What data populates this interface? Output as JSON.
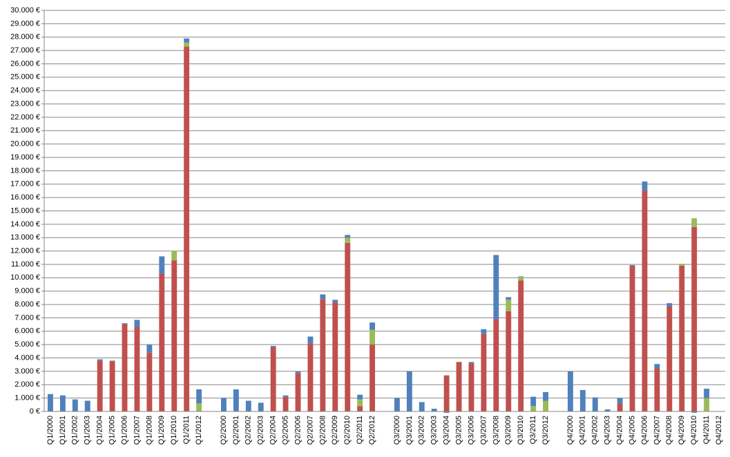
{
  "chart_data": {
    "type": "stacked-bar",
    "categories": [
      "Q1/2000",
      "Q1/2001",
      "Q1/2002",
      "Q1/2003",
      "Q1/2004",
      "Q1/2005",
      "Q1/2006",
      "Q1/2007",
      "Q1/2008",
      "Q1/2009",
      "Q1/2010",
      "Q1/2011",
      "Q1/2012",
      null,
      "Q2/2000",
      "Q2/2001",
      "Q2/2002",
      "Q2/2003",
      "Q2/2004",
      "Q2/2005",
      "Q2/2006",
      "Q2/2007",
      "Q2/2008",
      "Q2/2009",
      "Q2/2010",
      "Q2/2011",
      "Q2/2012",
      null,
      "Q3/2000",
      "Q3/2001",
      "Q3/2002",
      "Q3/2003",
      "Q3/2004",
      "Q3/2005",
      "Q3/2006",
      "Q3/2007",
      "Q3/2008",
      "Q3/2009",
      "Q3/2010",
      "Q3/2011",
      "Q3/2012",
      null,
      "Q4/2000",
      "Q4/2001",
      "Q4/2002",
      "Q4/2003",
      "Q4/2004",
      "Q4/2005",
      "Q4/2006",
      "Q4/2007",
      "Q4/2008",
      "Q4/2009",
      "Q4/2010",
      "Q4/2011",
      "Q4/2012"
    ],
    "series": [
      {
        "color": "#c0504d",
        "values": [
          0,
          0,
          0,
          0,
          3800,
          3750,
          6550,
          6300,
          4400,
          10300,
          11300,
          27300,
          0,
          null,
          0,
          0,
          0,
          0,
          4800,
          1100,
          2850,
          5100,
          8400,
          8150,
          12600,
          400,
          5000,
          null,
          0,
          0,
          0,
          0,
          2700,
          3700,
          3600,
          5800,
          6900,
          7500,
          9800,
          0,
          0,
          null,
          0,
          0,
          0,
          0,
          600,
          10900,
          16500,
          3200,
          7850,
          10900,
          13800,
          0,
          0
        ]
      },
      {
        "color": "#9bbb59",
        "values": [
          0,
          0,
          0,
          0,
          0,
          0,
          0,
          0,
          0,
          0,
          700,
          300,
          600,
          null,
          0,
          0,
          0,
          0,
          0,
          0,
          0,
          0,
          0,
          0,
          400,
          500,
          1100,
          null,
          0,
          0,
          0,
          0,
          0,
          0,
          0,
          0,
          0,
          850,
          250,
          400,
          800,
          null,
          0,
          0,
          0,
          0,
          0,
          0,
          0,
          0,
          0,
          150,
          650,
          1000,
          0
        ]
      },
      {
        "color": "#4f81bd",
        "values": [
          1300,
          1200,
          900,
          800,
          100,
          50,
          50,
          550,
          600,
          1300,
          0,
          300,
          1050,
          null,
          1000,
          1650,
          800,
          650,
          100,
          100,
          150,
          500,
          350,
          200,
          200,
          350,
          550,
          null,
          1000,
          3000,
          700,
          200,
          -100,
          0,
          100,
          350,
          4800,
          200,
          50,
          700,
          650,
          null,
          3000,
          1600,
          1050,
          150,
          400,
          50,
          700,
          350,
          250,
          0,
          -100,
          700,
          0
        ]
      }
    ],
    "ylim": [
      0,
      30000
    ],
    "yticks": [
      {
        "value": 0,
        "label": "0 €"
      },
      {
        "value": 1000,
        "label": "1.000 €"
      },
      {
        "value": 2000,
        "label": "2.000 €"
      },
      {
        "value": 3000,
        "label": "3.000 €"
      },
      {
        "value": 4000,
        "label": "4.000 €"
      },
      {
        "value": 5000,
        "label": "5.000 €"
      },
      {
        "value": 6000,
        "label": "6.000 €"
      },
      {
        "value": 7000,
        "label": "7.000 €"
      },
      {
        "value": 8000,
        "label": "8.000 €"
      },
      {
        "value": 9000,
        "label": "9.000 €"
      },
      {
        "value": 10000,
        "label": "10.000 €"
      },
      {
        "value": 11000,
        "label": "11.000 €"
      },
      {
        "value": 12000,
        "label": "12.000 €"
      },
      {
        "value": 13000,
        "label": "13.000 €"
      },
      {
        "value": 14000,
        "label": "14.000 €"
      },
      {
        "value": 15000,
        "label": "15.000 €"
      },
      {
        "value": 16000,
        "label": "16.000 €"
      },
      {
        "value": 17000,
        "label": "17.000 €"
      },
      {
        "value": 18000,
        "label": "18.000 €"
      },
      {
        "value": 19000,
        "label": "19.000 €"
      },
      {
        "value": 20000,
        "label": "20.000 €"
      },
      {
        "value": 21000,
        "label": "21.000 €"
      },
      {
        "value": 22000,
        "label": "22.000 €"
      },
      {
        "value": 23000,
        "label": "23.000 €"
      },
      {
        "value": 24000,
        "label": "24.000 €"
      },
      {
        "value": 25000,
        "label": "25.000 €"
      },
      {
        "value": 26000,
        "label": "26.000 €"
      },
      {
        "value": 27000,
        "label": "27.000 €"
      },
      {
        "value": 28000,
        "label": "28.000 €"
      },
      {
        "value": 29000,
        "label": "29.000 €"
      },
      {
        "value": 30000,
        "label": "30.000 €"
      }
    ],
    "grid": true
  }
}
